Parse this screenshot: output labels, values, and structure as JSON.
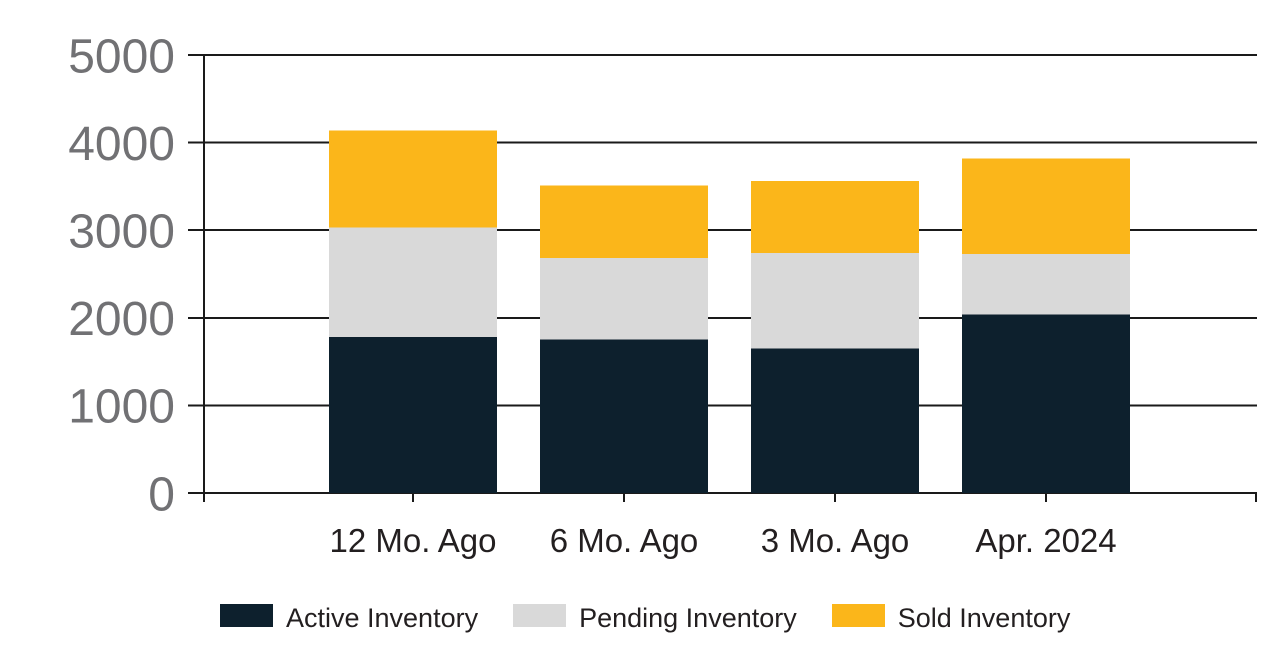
{
  "chart_data": {
    "type": "bar",
    "stacked": true,
    "title": "",
    "xlabel": "",
    "ylabel": "",
    "categories": [
      "12 Mo. Ago",
      "6 Mo. Ago",
      "3 Mo. Ago",
      "Apr. 2024"
    ],
    "series": [
      {
        "name": "Active Inventory",
        "color": "#0d202d",
        "values": [
          1780,
          1750,
          1650,
          2040
        ]
      },
      {
        "name": "Pending Inventory",
        "color": "#d9d9d9",
        "values": [
          1250,
          930,
          1090,
          690
        ]
      },
      {
        "name": "Sold Inventory",
        "color": "#fbb61a",
        "values": [
          1110,
          830,
          820,
          1090
        ]
      }
    ],
    "stack_totals": [
      4140,
      3510,
      3560,
      3820
    ],
    "ylim": [
      0,
      5000
    ],
    "yticks": [
      0,
      1000,
      2000,
      3000,
      4000,
      5000
    ],
    "ytick_labels": [
      "0",
      "1000",
      "2000",
      "3000",
      "4000",
      "5000"
    ],
    "grid": true,
    "legend_position": "bottom",
    "colors": {
      "axis": "#1a1a1a",
      "gridline": "#1a1a1a",
      "y_tick_label": "#717174",
      "x_tick_label": "#231f20",
      "legend_text": "#231f20",
      "background": "#ffffff"
    }
  }
}
